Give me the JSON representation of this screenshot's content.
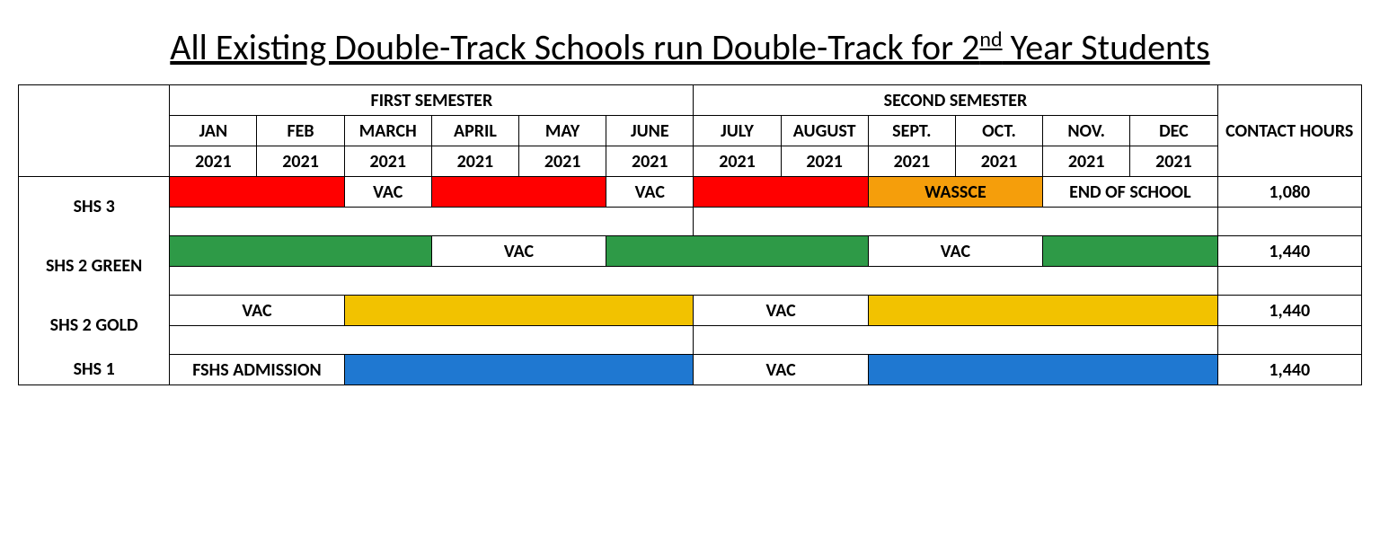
{
  "title_prefix": "All Existing Double-Track Schools run Double-Track for 2",
  "title_ord": "nd",
  "title_suffix": " Year Students",
  "semesters": {
    "first": "FIRST SEMESTER",
    "second": "SECOND SEMESTER"
  },
  "contact_hours_header": "CONTACT HOURS",
  "months": [
    "JAN",
    "FEB",
    "MARCH",
    "APRIL",
    "MAY",
    "JUNE",
    "JULY",
    "AUGUST",
    "SEPT.",
    "OCT.",
    "NOV.",
    "DEC"
  ],
  "years": [
    "2021",
    "2021",
    "2021",
    "2021",
    "2021",
    "2021",
    "2021",
    "2021",
    "2021",
    "2021",
    "2021",
    "2021"
  ],
  "colors": {
    "red": "#ff0000",
    "orange": "#f59e0b",
    "green": "#2e9a47",
    "gold": "#f2c200",
    "blue": "#1f78d1",
    "white": "#ffffff"
  },
  "rows": {
    "shs3": {
      "label": "SHS 3",
      "hours": "1,080",
      "cells": [
        {
          "span": 2,
          "color": "red",
          "text": ""
        },
        {
          "span": 1,
          "color": "white",
          "text": "VAC"
        },
        {
          "span": 2,
          "color": "red",
          "text": ""
        },
        {
          "span": 1,
          "color": "white",
          "text": "VAC"
        },
        {
          "span": 2,
          "color": "red",
          "text": ""
        },
        {
          "span": 2,
          "color": "orange",
          "text": "WASSCE"
        },
        {
          "span": 2,
          "color": "white",
          "text": "END OF SCHOOL"
        }
      ]
    },
    "shs2green": {
      "label": "SHS 2 GREEN",
      "hours": "1,440",
      "cells": [
        {
          "span": 3,
          "color": "green",
          "text": ""
        },
        {
          "span": 2,
          "color": "white",
          "text": "VAC"
        },
        {
          "span": 3,
          "color": "green",
          "text": ""
        },
        {
          "span": 2,
          "color": "white",
          "text": "VAC"
        },
        {
          "span": 2,
          "color": "green",
          "text": ""
        }
      ]
    },
    "shs2gold": {
      "label": "SHS 2 GOLD",
      "hours": "1,440",
      "cells": [
        {
          "span": 2,
          "color": "white",
          "text": "VAC"
        },
        {
          "span": 4,
          "color": "gold",
          "text": ""
        },
        {
          "span": 2,
          "color": "white",
          "text": "VAC"
        },
        {
          "span": 4,
          "color": "gold",
          "text": ""
        }
      ]
    },
    "shs1": {
      "label": "SHS 1",
      "hours": "1,440",
      "cells": [
        {
          "span": 2,
          "color": "white",
          "text": "FSHS ADMISSION"
        },
        {
          "span": 4,
          "color": "blue",
          "text": ""
        },
        {
          "span": 2,
          "color": "white",
          "text": "VAC"
        },
        {
          "span": 4,
          "color": "blue",
          "text": ""
        }
      ]
    }
  }
}
